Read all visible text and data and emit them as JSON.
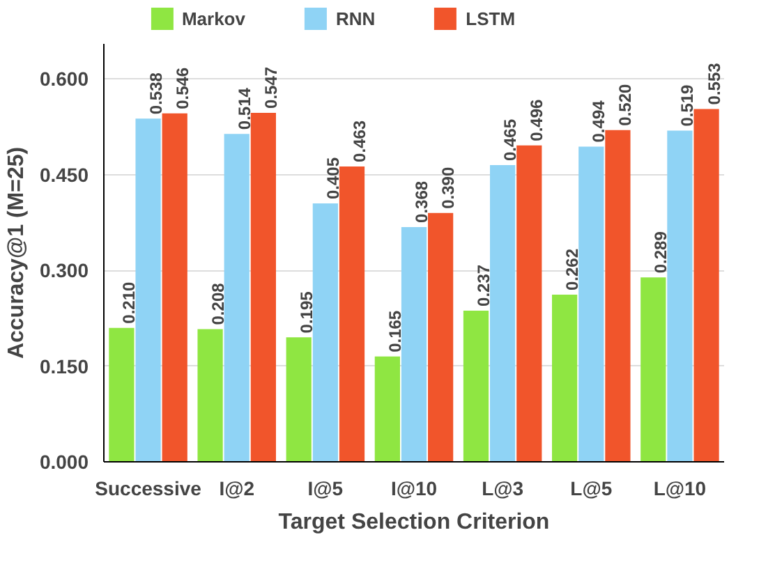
{
  "chart_data": {
    "type": "bar",
    "xlabel": "Target Selection Criterion",
    "ylabel": "Accuracy@1 (M=25)",
    "categories": [
      "Successive",
      "I@2",
      "I@5",
      "I@10",
      "L@3",
      "L@5",
      "L@10"
    ],
    "series": [
      {
        "name": "Markov",
        "color": "#8fe642",
        "values": [
          0.21,
          0.208,
          0.195,
          0.165,
          0.237,
          0.262,
          0.289
        ],
        "value_labels": [
          "0.210",
          "0.208",
          "0.195",
          "0.165",
          "0.237",
          "0.262",
          "0.289"
        ]
      },
      {
        "name": "RNN",
        "color": "#8fd3f5",
        "values": [
          0.538,
          0.514,
          0.405,
          0.368,
          0.465,
          0.494,
          0.519
        ],
        "value_labels": [
          "0.538",
          "0.514",
          "0.405",
          "0.368",
          "0.465",
          "0.494",
          "0.519"
        ]
      },
      {
        "name": "LSTM",
        "color": "#f1552b",
        "values": [
          0.546,
          0.547,
          0.463,
          0.39,
          0.496,
          0.52,
          0.553
        ],
        "value_labels": [
          "0.546",
          "0.547",
          "0.463",
          "0.390",
          "0.496",
          "0.520",
          "0.553"
        ]
      }
    ],
    "ylim": [
      0,
      0.655
    ],
    "yticks": [
      {
        "value": 0,
        "label": "0.000"
      },
      {
        "value": 0.15,
        "label": "0.150"
      },
      {
        "value": 0.3,
        "label": "0.300"
      },
      {
        "value": 0.45,
        "label": "0.450"
      },
      {
        "value": 0.6,
        "label": "0.600"
      }
    ],
    "grid": "y",
    "legend": "top"
  }
}
